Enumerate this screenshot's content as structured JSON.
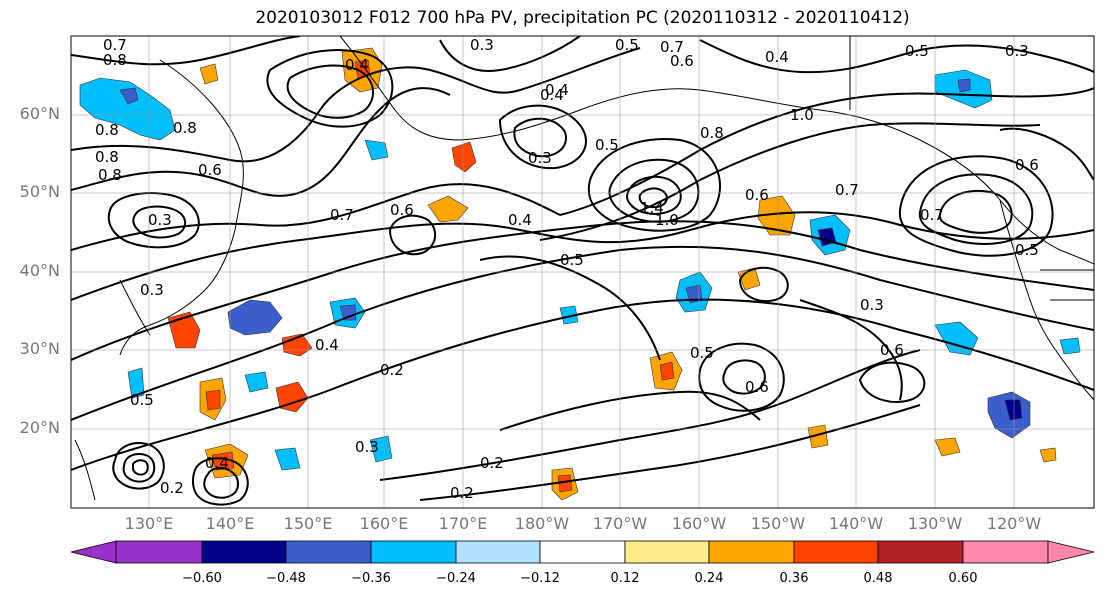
{
  "title": "2020103012 F012 700 hPa PV, precipitation PC (2020110312 - 2020110412)",
  "lat_labels": [
    "60°N",
    "50°N",
    "40°N",
    "30°N",
    "20°N"
  ],
  "lon_labels": [
    "130°E",
    "140°E",
    "150°E",
    "160°E",
    "170°E",
    "180°W",
    "170°W",
    "160°W",
    "150°W",
    "140°W",
    "130°W",
    "120°W"
  ],
  "colorbar": {
    "ticks": [
      "−0.60",
      "−0.48",
      "−0.36",
      "−0.24",
      "−0.12",
      "0.12",
      "0.24",
      "0.36",
      "0.48",
      "0.60"
    ],
    "colors": [
      "#9932cc",
      "#00008b",
      "#3a5fcd",
      "#00bfff",
      "#b0e2ff",
      "#ffffff",
      "#ffec8b",
      "#ffa500",
      "#ff4500",
      "#b22222",
      "#ff88aa"
    ]
  },
  "contour_labels": [
    "0.7",
    "0.8",
    "0.3",
    "0.4",
    "0.7",
    "0.6",
    "0.5",
    "0.3",
    "0.4",
    "0.5",
    "0.8",
    "0.8",
    "0.8",
    "0.6",
    "0.8",
    "0.3",
    "0.4",
    "0.6",
    "0.7",
    "0.4",
    "0.3",
    "0.5",
    "1.4",
    "1.0",
    "0.4",
    "0.5",
    "0.6",
    "0.7",
    "1.0",
    "0.8",
    "0.7",
    "0.6",
    "0.5",
    "0.3",
    "0.4",
    "0.2",
    "0.5",
    "0.6",
    "0.2",
    "0.3",
    "0.4",
    "0.5",
    "0.2",
    "0.2",
    "0.3",
    "0.6"
  ]
}
